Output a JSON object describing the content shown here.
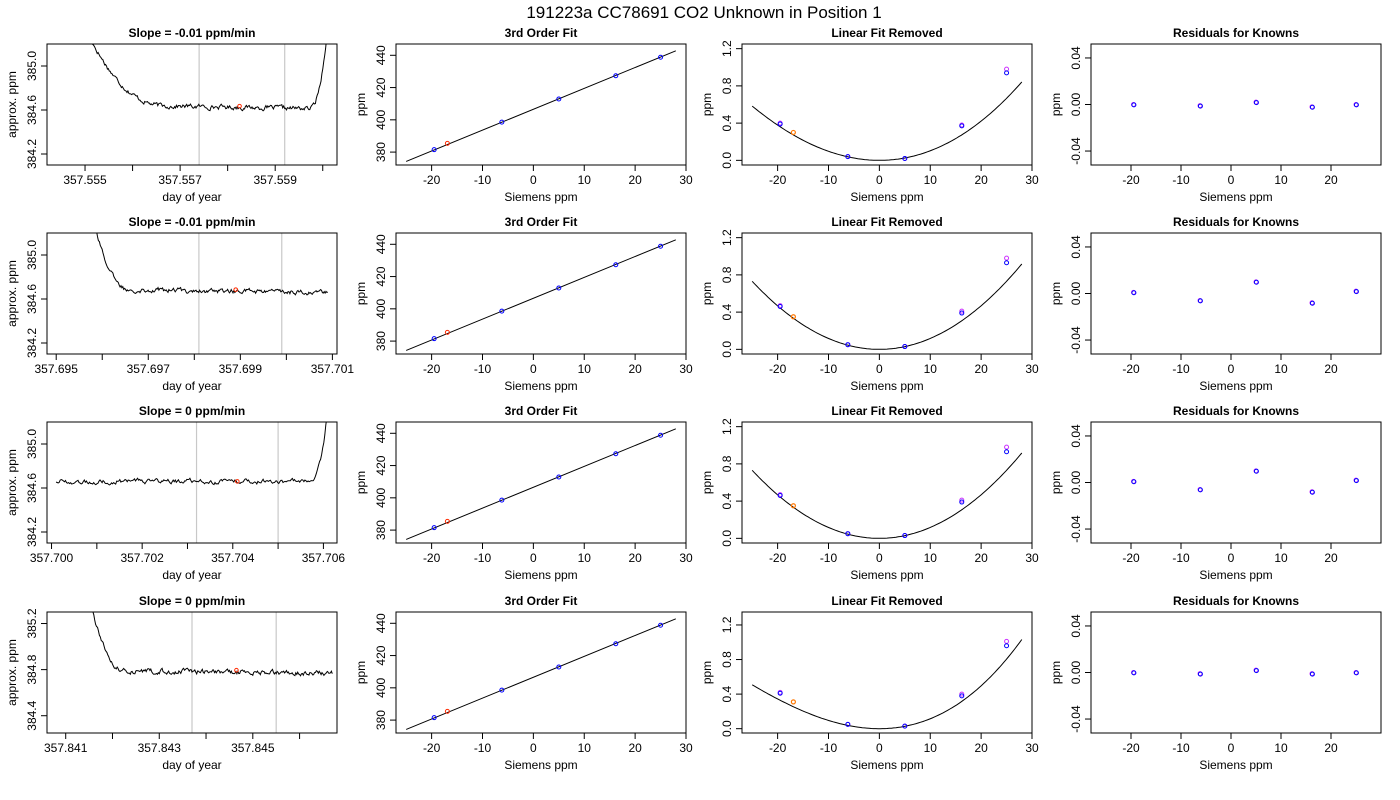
{
  "figure": {
    "title": "191223a     CC78691    CO2 Unknown in Position  1"
  },
  "panel_titles": {
    "fit": "3rd Order Fit",
    "linear": "Linear Fit Removed",
    "resid": "Residuals for Knowns"
  },
  "axis_labels": {
    "trace_x": "day of year",
    "trace_y": "approx. ppm",
    "fit_x": "Siemens ppm",
    "fit_y": "ppm",
    "linear_x": "Siemens ppm",
    "linear_y": "ppm",
    "resid_x": "Siemens ppm",
    "resid_y": "ppm"
  },
  "colors": {
    "line": "#000000",
    "window_line": "#c8c8c8",
    "unknown_point": "#ff2a00",
    "known_point": "#0000ff",
    "fit_point": "#cc33ff",
    "unknown_point_linear": "#ff7700"
  },
  "chart_data": [
    {
      "type": "line",
      "panel": "trace",
      "row": 0,
      "title": "Slope =  -0.01  ppm/min",
      "xlim": [
        357.5542,
        357.5603
      ],
      "ylim": [
        384.1,
        385.2
      ],
      "xticks": [
        357.555,
        357.556,
        357.557,
        357.558,
        357.559,
        357.56
      ],
      "xtick_labels": [
        "357.555",
        "",
        "357.557",
        "",
        "357.559",
        ""
      ],
      "yticks": [
        384.2,
        384.6,
        385.0
      ],
      "ytick_labels": [
        "384.2",
        "384.6",
        "385.0"
      ],
      "window_x": [
        357.5574,
        357.5592
      ],
      "trace_x": [
        357.555,
        357.5567,
        357.5597,
        357.5601
      ],
      "trace_y": [
        385.35,
        384.64,
        384.61,
        385.35
      ],
      "baseline": [
        384.65,
        384.61
      ],
      "unknown_point": [
        357.55825,
        384.635
      ]
    },
    {
      "type": "scatter",
      "panel": "fit",
      "row": 0,
      "title": "3rd Order Fit",
      "xlim": [
        -27,
        30
      ],
      "ylim": [
        372,
        447
      ],
      "xticks": [
        -20,
        -10,
        0,
        10,
        20,
        30
      ],
      "yticks": [
        380,
        400,
        420,
        440
      ],
      "known_x": [
        -19.5,
        -6.2,
        5.0,
        16.2,
        25.0
      ],
      "known_y": [
        381.5,
        398.6,
        412.9,
        427.3,
        438.8
      ],
      "unknown_point": [
        -16.9,
        385.4
      ],
      "line_x": [
        -25,
        28
      ],
      "line_y": [
        374.2,
        442.8
      ]
    },
    {
      "type": "scatter",
      "panel": "linear",
      "row": 0,
      "title": "Linear Fit Removed",
      "xlim": [
        -27,
        30
      ],
      "ylim": [
        -0.05,
        1.25
      ],
      "xticks": [
        -20,
        -10,
        0,
        10,
        20,
        30
      ],
      "yticks": [
        0.0,
        0.4,
        0.8,
        1.2
      ],
      "ytick_labels": [
        "0.0",
        "0.4",
        "0.8",
        "1.2"
      ],
      "curve": {
        "x0": 0,
        "a": 0.001,
        "b": 0.0,
        "c": 2.67e-06
      },
      "known_x": [
        -19.5,
        -6.2,
        5.0,
        16.2,
        25.0
      ],
      "known_y": [
        0.39,
        0.04,
        0.02,
        0.37,
        0.94
      ],
      "fit_y": [
        0.4,
        0.04,
        0.02,
        0.38,
        0.98
      ],
      "unknown_point": [
        -16.9,
        0.3
      ]
    },
    {
      "type": "scatter",
      "panel": "resid",
      "row": 0,
      "title": "Residuals for Knowns",
      "xlim": [
        -28,
        30
      ],
      "ylim": [
        -0.052,
        0.052
      ],
      "xticks": [
        -20,
        -10,
        0,
        10,
        20
      ],
      "yticks": [
        -0.04,
        0.0,
        0.04
      ],
      "ytick_labels": [
        "-0.04",
        "0.00",
        "0.04"
      ],
      "known_x": [
        -19.5,
        -6.2,
        5.0,
        16.2,
        25.0
      ],
      "known_y": [
        0.0,
        -0.001,
        0.002,
        -0.002,
        0.0
      ]
    },
    {
      "type": "line",
      "panel": "trace",
      "row": 1,
      "title": "Slope =  -0.01  ppm/min",
      "xlim": [
        357.6948,
        357.7011
      ],
      "ylim": [
        384.1,
        385.2
      ],
      "xticks": [
        357.695,
        357.696,
        357.697,
        357.698,
        357.699,
        357.7,
        357.701
      ],
      "xtick_labels": [
        "357.695",
        "",
        "357.697",
        "",
        "357.699",
        "",
        "357.701"
      ],
      "yticks": [
        384.2,
        384.6,
        385.0
      ],
      "ytick_labels": [
        "384.2",
        "384.6",
        "385.0"
      ],
      "window_x": [
        357.6981,
        357.6999
      ],
      "trace_x": [
        357.6958,
        357.6966,
        357.7009
      ],
      "trace_y": [
        385.35,
        384.69,
        384.66
      ],
      "baseline": [
        384.69,
        384.66
      ],
      "unknown_point": [
        357.6989,
        384.685
      ]
    },
    {
      "type": "scatter",
      "panel": "fit",
      "row": 1,
      "title": "3rd Order Fit",
      "xlim": [
        -27,
        30
      ],
      "ylim": [
        372,
        447
      ],
      "xticks": [
        -20,
        -10,
        0,
        10,
        20,
        30
      ],
      "yticks": [
        380,
        400,
        420,
        440
      ],
      "known_x": [
        -19.5,
        -6.2,
        5.0,
        16.2,
        25.0
      ],
      "known_y": [
        381.5,
        398.6,
        412.9,
        427.3,
        438.8
      ],
      "unknown_point": [
        -16.9,
        385.4
      ],
      "line_x": [
        -25,
        28
      ],
      "line_y": [
        374.2,
        442.8
      ]
    },
    {
      "type": "scatter",
      "panel": "linear",
      "row": 1,
      "title": "Linear Fit Removed",
      "xlim": [
        -27,
        30
      ],
      "ylim": [
        -0.05,
        1.25
      ],
      "xticks": [
        -20,
        -10,
        0,
        10,
        20,
        30
      ],
      "yticks": [
        0.0,
        0.4,
        0.8,
        1.2
      ],
      "ytick_labels": [
        "0.0",
        "0.4",
        "0.8",
        "1.2"
      ],
      "curve": {
        "x0": 0,
        "a": 0.00117,
        "b": 0.0,
        "c": 0.0
      },
      "known_x": [
        -19.5,
        -6.2,
        5.0,
        16.2,
        25.0
      ],
      "known_y": [
        0.46,
        0.05,
        0.03,
        0.39,
        0.93
      ],
      "fit_y": [
        0.47,
        0.05,
        0.03,
        0.41,
        0.98
      ],
      "unknown_point": [
        -16.9,
        0.35
      ]
    },
    {
      "type": "scatter",
      "panel": "resid",
      "row": 1,
      "title": "Residuals for Knowns",
      "xlim": [
        -28,
        30
      ],
      "ylim": [
        -0.052,
        0.052
      ],
      "xticks": [
        -20,
        -10,
        0,
        10,
        20
      ],
      "yticks": [
        -0.04,
        0.0,
        0.04
      ],
      "ytick_labels": [
        "-0.04",
        "0.00",
        "0.04"
      ],
      "known_x": [
        -19.5,
        -6.2,
        5.0,
        16.2,
        25.0
      ],
      "known_y": [
        0.001,
        -0.006,
        0.01,
        -0.008,
        0.002
      ]
    },
    {
      "type": "line",
      "panel": "trace",
      "row": 2,
      "title": "Slope =  0  ppm/min",
      "xlim": [
        357.6999,
        357.7063
      ],
      "ylim": [
        384.1,
        385.2
      ],
      "xticks": [
        357.7,
        357.701,
        357.702,
        357.703,
        357.704,
        357.705,
        357.706
      ],
      "xtick_labels": [
        "357.700",
        "",
        "357.702",
        "",
        "357.704",
        "",
        "357.706"
      ],
      "yticks": [
        384.2,
        384.6,
        385.0
      ],
      "ytick_labels": [
        "384.2",
        "384.6",
        "385.0"
      ],
      "window_x": [
        357.7032,
        357.705
      ],
      "trace_x": [
        357.7001,
        357.7057,
        357.7061
      ],
      "trace_y": [
        384.66,
        384.66,
        385.35
      ],
      "baseline": [
        384.66,
        384.66
      ],
      "unknown_point": [
        357.7041,
        384.66
      ]
    },
    {
      "type": "scatter",
      "panel": "fit",
      "row": 2,
      "title": "3rd Order Fit",
      "xlim": [
        -27,
        30
      ],
      "ylim": [
        372,
        447
      ],
      "xticks": [
        -20,
        -10,
        0,
        10,
        20,
        30
      ],
      "yticks": [
        380,
        400,
        420,
        440
      ],
      "known_x": [
        -19.5,
        -6.2,
        5.0,
        16.2,
        25.0
      ],
      "known_y": [
        381.5,
        398.6,
        412.9,
        427.3,
        438.8
      ],
      "unknown_point": [
        -16.9,
        385.4
      ],
      "line_x": [
        -25,
        28
      ],
      "line_y": [
        374.2,
        442.8
      ]
    },
    {
      "type": "scatter",
      "panel": "linear",
      "row": 2,
      "title": "Linear Fit Removed",
      "xlim": [
        -27,
        30
      ],
      "ylim": [
        -0.05,
        1.25
      ],
      "xticks": [
        -20,
        -10,
        0,
        10,
        20,
        30
      ],
      "yticks": [
        0.0,
        0.4,
        0.8,
        1.2
      ],
      "ytick_labels": [
        "0.0",
        "0.4",
        "0.8",
        "1.2"
      ],
      "curve": {
        "x0": 0,
        "a": 0.00117,
        "b": 0.0,
        "c": 0.0
      },
      "known_x": [
        -19.5,
        -6.2,
        5.0,
        16.2,
        25.0
      ],
      "known_y": [
        0.46,
        0.05,
        0.03,
        0.39,
        0.93
      ],
      "fit_y": [
        0.47,
        0.05,
        0.03,
        0.41,
        0.98
      ],
      "unknown_point": [
        -16.9,
        0.35
      ]
    },
    {
      "type": "scatter",
      "panel": "resid",
      "row": 2,
      "title": "Residuals for Knowns",
      "xlim": [
        -28,
        30
      ],
      "ylim": [
        -0.052,
        0.052
      ],
      "xticks": [
        -20,
        -10,
        0,
        10,
        20
      ],
      "yticks": [
        -0.04,
        0.0,
        0.04
      ],
      "ytick_labels": [
        "-0.04",
        "0.00",
        "0.04"
      ],
      "known_x": [
        -19.5,
        -6.2,
        5.0,
        16.2,
        25.0
      ],
      "known_y": [
        0.001,
        -0.006,
        0.01,
        -0.008,
        0.002
      ]
    },
    {
      "type": "line",
      "panel": "trace",
      "row": 3,
      "title": "Slope =  0  ppm/min",
      "xlim": [
        357.8406,
        357.8468
      ],
      "ylim": [
        384.25,
        385.3
      ],
      "xticks": [
        357.841,
        357.842,
        357.843,
        357.844,
        357.845,
        357.846
      ],
      "xtick_labels": [
        "357.841",
        "",
        "357.843",
        "",
        "357.845",
        ""
      ],
      "yticks": [
        384.4,
        384.8,
        385.2
      ],
      "ytick_labels": [
        "384.4",
        "384.8",
        "385.2"
      ],
      "window_x": [
        357.8437,
        357.8455
      ],
      "trace_x": [
        357.8415,
        357.8423,
        357.8467
      ],
      "trace_y": [
        385.45,
        384.79,
        384.77
      ],
      "baseline": [
        384.79,
        384.77
      ],
      "unknown_point": [
        357.84465,
        384.795
      ]
    },
    {
      "type": "scatter",
      "panel": "fit",
      "row": 3,
      "title": "3rd Order Fit",
      "xlim": [
        -27,
        30
      ],
      "ylim": [
        372,
        447
      ],
      "xticks": [
        -20,
        -10,
        0,
        10,
        20,
        30
      ],
      "yticks": [
        380,
        400,
        420,
        440
      ],
      "known_x": [
        -19.5,
        -6.2,
        5.0,
        16.2,
        25.0
      ],
      "known_y": [
        381.5,
        398.6,
        412.9,
        427.3,
        438.8
      ],
      "unknown_point": [
        -16.9,
        385.4
      ],
      "line_x": [
        -25,
        28
      ],
      "line_y": [
        374.2,
        442.8
      ]
    },
    {
      "type": "scatter",
      "panel": "linear",
      "row": 3,
      "title": "Linear Fit Removed",
      "xlim": [
        -27,
        30
      ],
      "ylim": [
        -0.05,
        1.35
      ],
      "xticks": [
        -20,
        -10,
        0,
        10,
        20,
        30
      ],
      "yticks": [
        0.0,
        0.4,
        0.8,
        1.2
      ],
      "ytick_labels": [
        "0.0",
        "0.4",
        "0.8",
        "1.2"
      ],
      "curve": {
        "x0": 0,
        "a": 0.00105,
        "b": 0.0,
        "c": 9.5e-06
      },
      "known_x": [
        -19.5,
        -6.2,
        5.0,
        16.2,
        25.0
      ],
      "known_y": [
        0.41,
        0.05,
        0.03,
        0.38,
        0.96
      ],
      "fit_y": [
        0.42,
        0.05,
        0.03,
        0.4,
        1.01
      ],
      "unknown_point": [
        -16.9,
        0.31
      ]
    },
    {
      "type": "scatter",
      "panel": "resid",
      "row": 3,
      "title": "Residuals for Knowns",
      "xlim": [
        -28,
        30
      ],
      "ylim": [
        -0.052,
        0.052
      ],
      "xticks": [
        -20,
        -10,
        0,
        10,
        20
      ],
      "yticks": [
        -0.04,
        0.0,
        0.04
      ],
      "ytick_labels": [
        "-0.04",
        "0.00",
        "0.04"
      ],
      "known_x": [
        -19.5,
        -6.2,
        5.0,
        16.2,
        25.0
      ],
      "known_y": [
        0.0,
        -0.001,
        0.002,
        -0.001,
        0.0
      ]
    }
  ]
}
